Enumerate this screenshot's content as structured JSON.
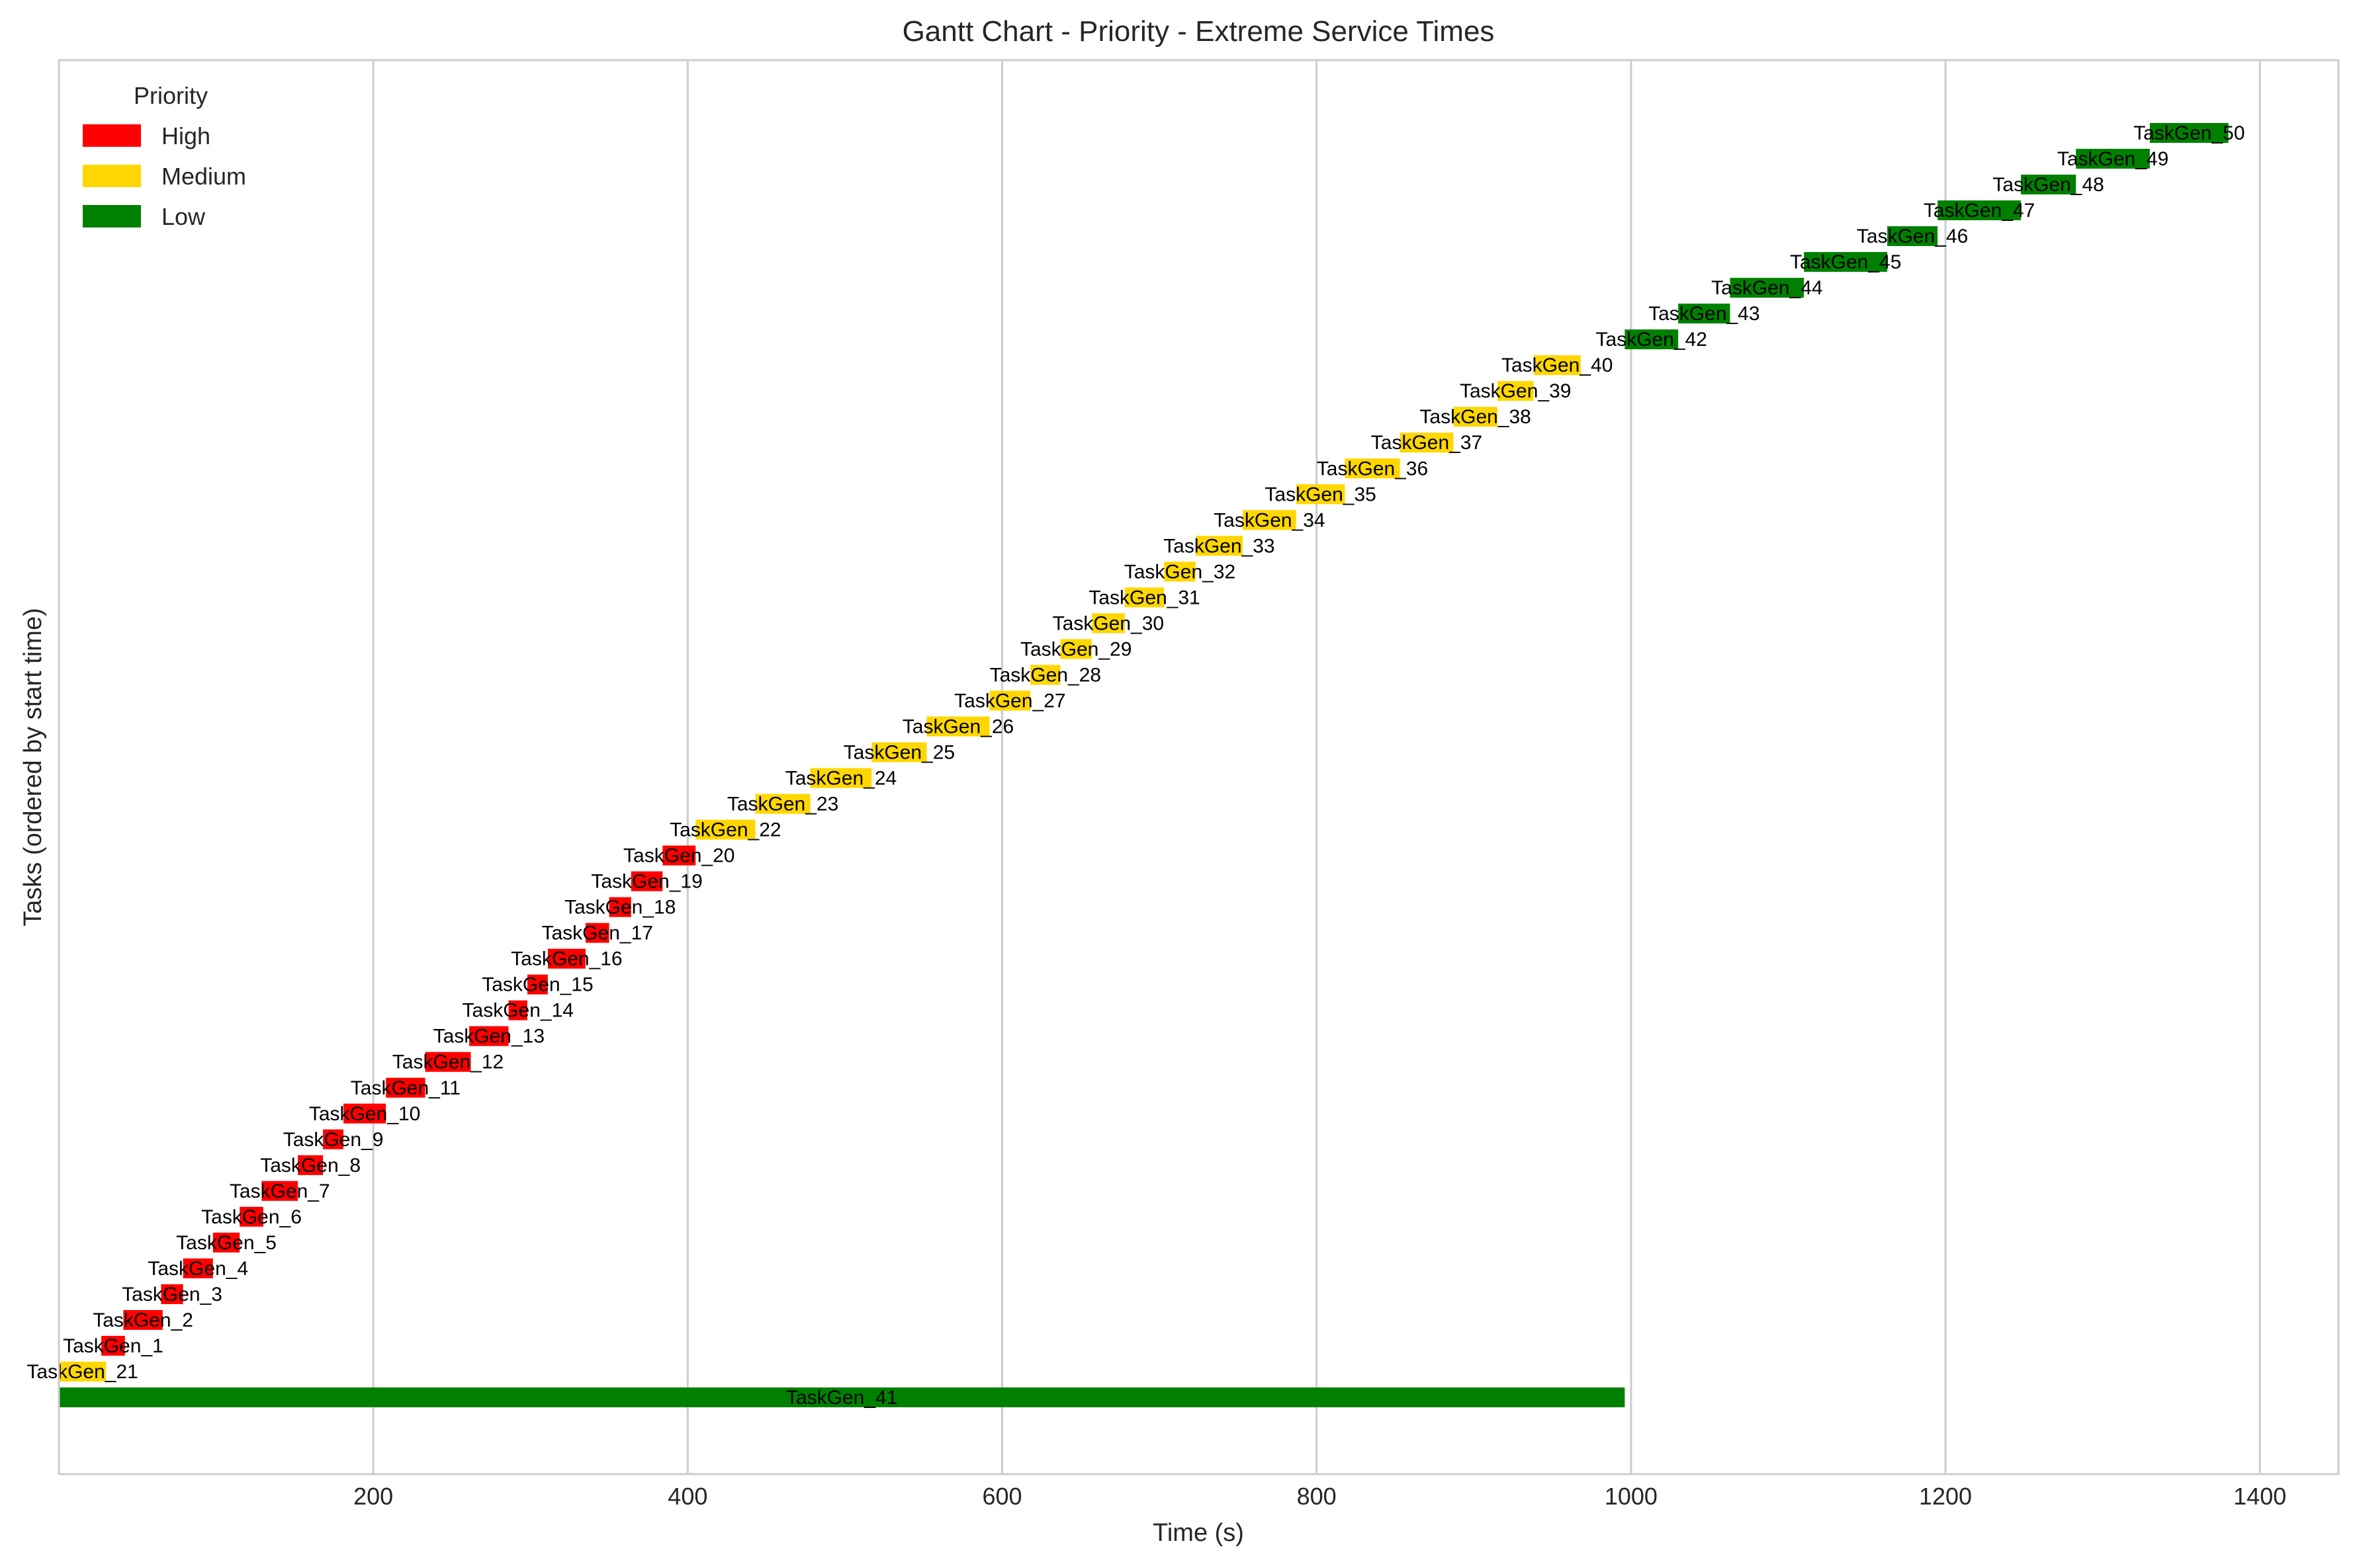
{
  "chart_data": {
    "type": "gantt",
    "title": "Gantt Chart - Priority - Extreme Service Times",
    "xlabel": "Time (s)",
    "ylabel": "Tasks (ordered by start time)",
    "xlim": [
      0,
      1450
    ],
    "xticks": [
      200,
      400,
      600,
      800,
      1000,
      1200,
      1400
    ],
    "grid": "vertical",
    "legend": {
      "title": "Priority",
      "placement": "top-left",
      "entries": [
        {
          "label": "High",
          "color": "#ff0000"
        },
        {
          "label": "Medium",
          "color": "#ffd700"
        },
        {
          "label": "Low",
          "color": "#008000"
        }
      ]
    },
    "priority_colors": {
      "High": "#ff0000",
      "Medium": "#ffd700",
      "Low": "#008000"
    },
    "tasks": [
      {
        "name": "TaskGen_41",
        "priority": "Low",
        "start": 0,
        "end": 996
      },
      {
        "name": "TaskGen_21",
        "priority": "Medium",
        "start": 0,
        "end": 30
      },
      {
        "name": "TaskGen_1",
        "priority": "High",
        "start": 27,
        "end": 42
      },
      {
        "name": "TaskGen_2",
        "priority": "High",
        "start": 41,
        "end": 66
      },
      {
        "name": "TaskGen_3",
        "priority": "High",
        "start": 65,
        "end": 79
      },
      {
        "name": "TaskGen_4",
        "priority": "High",
        "start": 79,
        "end": 98
      },
      {
        "name": "TaskGen_5",
        "priority": "High",
        "start": 98,
        "end": 115
      },
      {
        "name": "TaskGen_6",
        "priority": "High",
        "start": 115,
        "end": 130
      },
      {
        "name": "TaskGen_7",
        "priority": "High",
        "start": 129,
        "end": 152
      },
      {
        "name": "TaskGen_8",
        "priority": "High",
        "start": 152,
        "end": 168
      },
      {
        "name": "TaskGen_9",
        "priority": "High",
        "start": 168,
        "end": 181
      },
      {
        "name": "TaskGen_10",
        "priority": "High",
        "start": 181,
        "end": 208
      },
      {
        "name": "TaskGen_11",
        "priority": "High",
        "start": 208,
        "end": 233
      },
      {
        "name": "TaskGen_12",
        "priority": "High",
        "start": 233,
        "end": 262
      },
      {
        "name": "TaskGen_13",
        "priority": "High",
        "start": 261,
        "end": 286
      },
      {
        "name": "TaskGen_14",
        "priority": "High",
        "start": 286,
        "end": 298
      },
      {
        "name": "TaskGen_15",
        "priority": "High",
        "start": 298,
        "end": 311
      },
      {
        "name": "TaskGen_16",
        "priority": "High",
        "start": 311,
        "end": 335
      },
      {
        "name": "TaskGen_17",
        "priority": "High",
        "start": 335,
        "end": 350
      },
      {
        "name": "TaskGen_18",
        "priority": "High",
        "start": 350,
        "end": 364
      },
      {
        "name": "TaskGen_19",
        "priority": "High",
        "start": 364,
        "end": 384
      },
      {
        "name": "TaskGen_20",
        "priority": "High",
        "start": 384,
        "end": 405
      },
      {
        "name": "TaskGen_22",
        "priority": "Medium",
        "start": 405,
        "end": 443
      },
      {
        "name": "TaskGen_23",
        "priority": "Medium",
        "start": 443,
        "end": 478
      },
      {
        "name": "TaskGen_24",
        "priority": "Medium",
        "start": 478,
        "end": 517
      },
      {
        "name": "TaskGen_25",
        "priority": "Medium",
        "start": 517,
        "end": 552
      },
      {
        "name": "TaskGen_26",
        "priority": "Medium",
        "start": 552,
        "end": 592
      },
      {
        "name": "TaskGen_27",
        "priority": "Medium",
        "start": 592,
        "end": 618
      },
      {
        "name": "TaskGen_28",
        "priority": "Medium",
        "start": 618,
        "end": 637
      },
      {
        "name": "TaskGen_29",
        "priority": "Medium",
        "start": 637,
        "end": 657
      },
      {
        "name": "TaskGen_30",
        "priority": "Medium",
        "start": 657,
        "end": 678
      },
      {
        "name": "TaskGen_31",
        "priority": "Medium",
        "start": 678,
        "end": 703
      },
      {
        "name": "TaskGen_32",
        "priority": "Medium",
        "start": 703,
        "end": 723
      },
      {
        "name": "TaskGen_33",
        "priority": "Medium",
        "start": 723,
        "end": 753
      },
      {
        "name": "TaskGen_34",
        "priority": "Medium",
        "start": 753,
        "end": 787
      },
      {
        "name": "TaskGen_35",
        "priority": "Medium",
        "start": 787,
        "end": 818
      },
      {
        "name": "TaskGen_36",
        "priority": "Medium",
        "start": 818,
        "end": 853
      },
      {
        "name": "TaskGen_37",
        "priority": "Medium",
        "start": 853,
        "end": 887
      },
      {
        "name": "TaskGen_38",
        "priority": "Medium",
        "start": 887,
        "end": 915
      },
      {
        "name": "TaskGen_39",
        "priority": "Medium",
        "start": 915,
        "end": 938
      },
      {
        "name": "TaskGen_40",
        "priority": "Medium",
        "start": 938,
        "end": 968
      },
      {
        "name": "TaskGen_42",
        "priority": "Low",
        "start": 996,
        "end": 1030
      },
      {
        "name": "TaskGen_43",
        "priority": "Low",
        "start": 1030,
        "end": 1063
      },
      {
        "name": "TaskGen_44",
        "priority": "Low",
        "start": 1063,
        "end": 1110
      },
      {
        "name": "TaskGen_45",
        "priority": "Low",
        "start": 1110,
        "end": 1163
      },
      {
        "name": "TaskGen_46",
        "priority": "Low",
        "start": 1163,
        "end": 1195
      },
      {
        "name": "TaskGen_47",
        "priority": "Low",
        "start": 1195,
        "end": 1248
      },
      {
        "name": "TaskGen_48",
        "priority": "Low",
        "start": 1248,
        "end": 1283
      },
      {
        "name": "TaskGen_49",
        "priority": "Low",
        "start": 1283,
        "end": 1330
      },
      {
        "name": "TaskGen_50",
        "priority": "Low",
        "start": 1330,
        "end": 1380
      }
    ]
  }
}
